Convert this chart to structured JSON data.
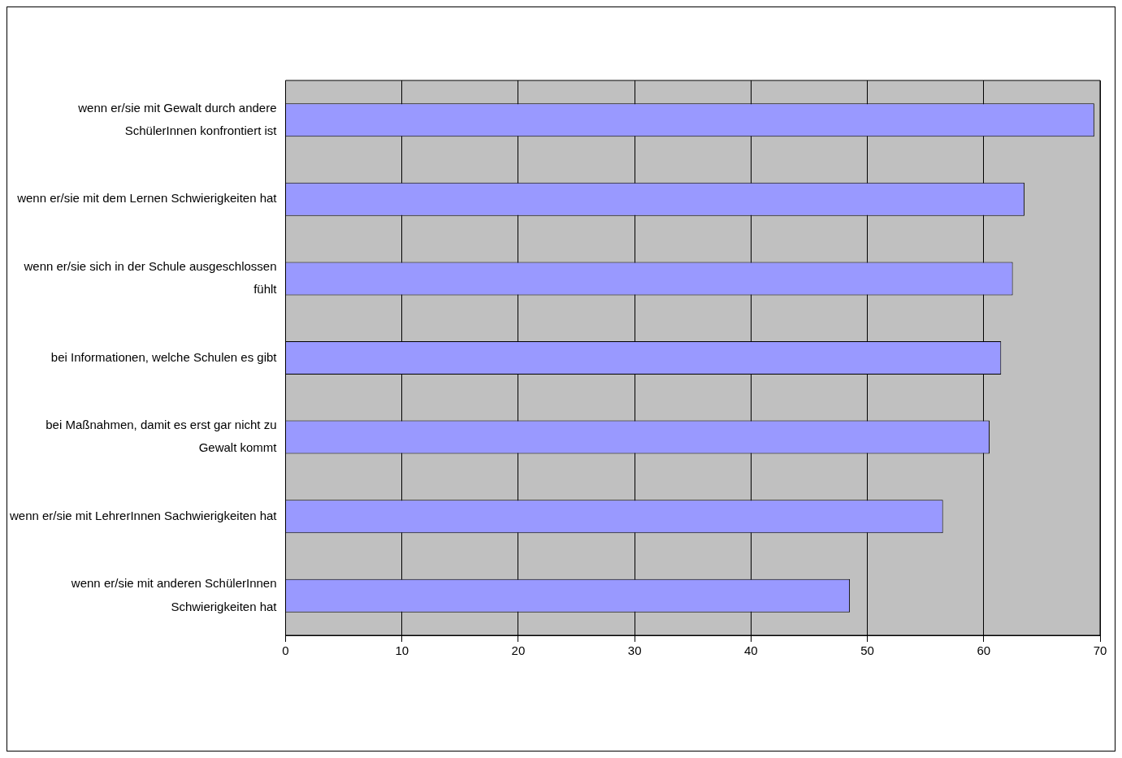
{
  "chart_data": {
    "type": "bar",
    "orientation": "horizontal",
    "categories": [
      "wenn er/sie mit Gewalt durch andere SchülerInnen konfrontiert ist",
      "wenn er/sie mit dem Lernen Schwierigkeiten hat",
      "wenn er/sie sich in der Schule ausgeschlossen fühlt",
      "bei Informationen, welche Schulen es gibt",
      "bei Maßnahmen, damit es erst gar nicht zu Gewalt kommt",
      "wenn er/sie mit LehrerInnen Sachwierigkeiten hat",
      "wenn er/sie mit anderen SchülerInnen Schwierigkeiten hat"
    ],
    "values": [
      69.5,
      63.5,
      62.5,
      61.5,
      60.5,
      56.5,
      48.5
    ],
    "color": "#9999ff",
    "xlim": [
      0,
      70
    ],
    "xticks": [
      0,
      10,
      20,
      30,
      40,
      50,
      60,
      70
    ],
    "grid": "x",
    "legend": false
  }
}
